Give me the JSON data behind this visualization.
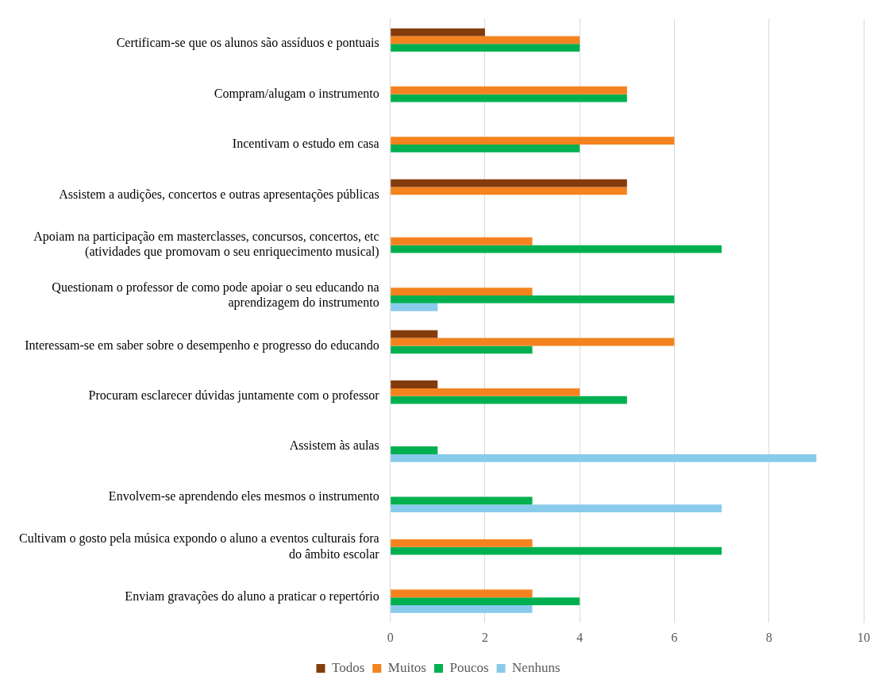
{
  "chart_data": {
    "type": "bar",
    "orientation": "horizontal",
    "categories": [
      "Certificam-se que os alunos são assíduos e pontuais",
      "Compram/alugam o instrumento",
      "Incentivam o estudo em casa",
      "Assistem a audições, concertos e outras apresentações públicas",
      "Apoiam na participação em masterclasses, concursos, concertos, etc\n(atividades que promovam o seu enriquecimento musical)",
      "Questionam o professor de como pode apoiar o seu educando na\naprendizagem do instrumento",
      "Interessam-se em saber sobre o desempenho e progresso do educando",
      "Procuram esclarecer dúvidas juntamente com o professor",
      "Assistem às aulas",
      "Envolvem-se aprendendo eles mesmos o instrumento",
      "Cultivam o gosto pela música expondo o aluno a eventos culturais fora\ndo âmbito escolar",
      "Enviam gravações do aluno a praticar o repertório"
    ],
    "series": [
      {
        "name": "Todos",
        "color": "#843c0c",
        "values": [
          2,
          null,
          null,
          5,
          null,
          null,
          1,
          1,
          null,
          null,
          null,
          null
        ]
      },
      {
        "name": "Muitos",
        "color": "#f4831f",
        "values": [
          4,
          5,
          6,
          5,
          3,
          3,
          6,
          4,
          null,
          null,
          3,
          3
        ]
      },
      {
        "name": "Poucos",
        "color": "#00b050",
        "values": [
          4,
          5,
          4,
          null,
          7,
          6,
          3,
          5,
          1,
          3,
          7,
          4
        ]
      },
      {
        "name": "Nenhuns",
        "color": "#89cbeb",
        "values": [
          null,
          null,
          null,
          null,
          null,
          1,
          null,
          null,
          9,
          7,
          null,
          3
        ]
      }
    ],
    "xlim": [
      0,
      10
    ],
    "xticks": [
      0,
      2,
      4,
      6,
      8,
      10
    ],
    "grid": "x",
    "legend": "bottom"
  }
}
